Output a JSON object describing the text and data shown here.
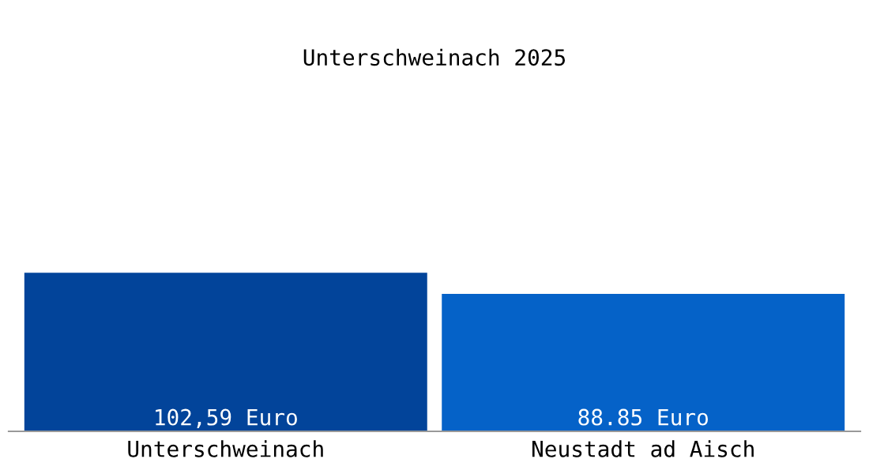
{
  "chart_data": {
    "type": "bar",
    "title": "Unterschweinach 2025",
    "categories": [
      "Unterschweinach",
      "Neustadt ad Aisch"
    ],
    "values": [
      102.59,
      88.85
    ],
    "colors": [
      "#02449a",
      "#0562c8"
    ],
    "value_labels": [
      "102,59 Euro",
      "88.85 Euro"
    ],
    "grid": false,
    "legend": false,
    "tick_labels": "x"
  }
}
